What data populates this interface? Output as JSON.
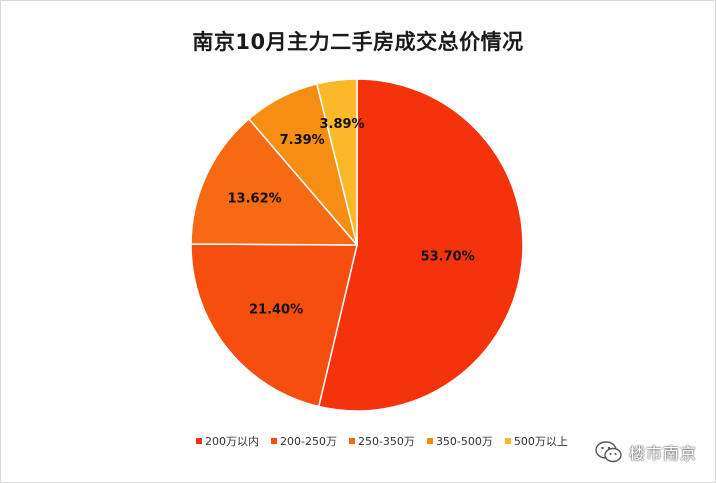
{
  "chart_data": {
    "type": "pie",
    "title": "南京10月主力二手房成交总价情况",
    "slices": [
      {
        "name": "200万以内",
        "value": 53.7,
        "label": "53.70%",
        "color": "#f4330a"
      },
      {
        "name": "200-250万",
        "value": 21.4,
        "label": "21.40%",
        "color": "#f54e0f"
      },
      {
        "name": "250-350万",
        "value": 13.62,
        "label": "13.62%",
        "color": "#f56a12"
      },
      {
        "name": "350-500万",
        "value": 7.39,
        "label": "7.39%",
        "color": "#f78e14"
      },
      {
        "name": "500万以上",
        "value": 3.89,
        "label": "3.89%",
        "color": "#fbb92a"
      }
    ],
    "legend_position": "bottom"
  },
  "watermark": {
    "text": "楼市南京",
    "icon": "wechat-icon"
  }
}
